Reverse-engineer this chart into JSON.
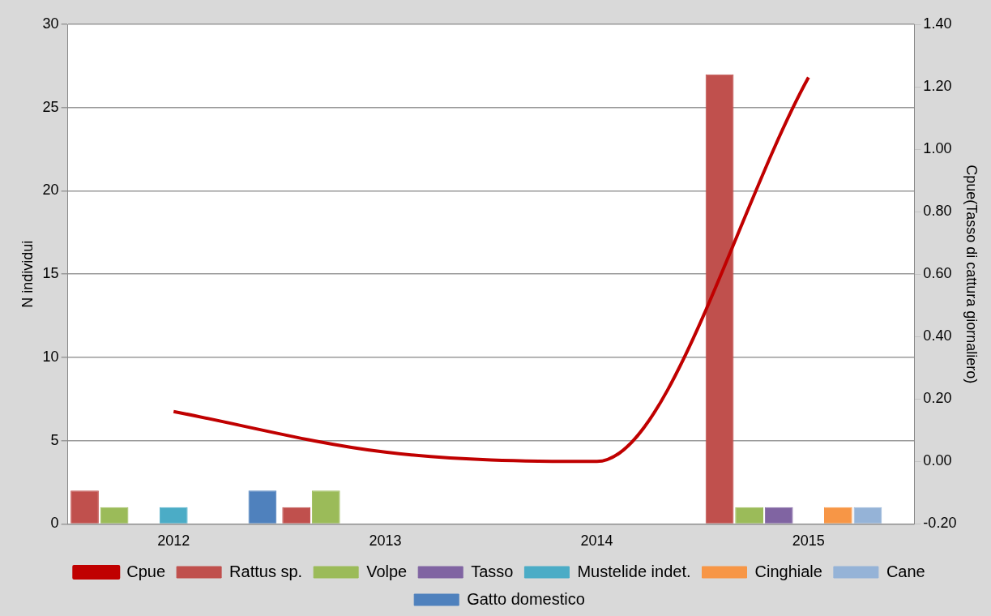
{
  "chart_data": {
    "type": "bar",
    "categories": [
      "2012",
      "2013",
      "2014",
      "2015"
    ],
    "ylabel": "N individui",
    "y2label": "Cpue(Tasso di cattura giornaliero)",
    "ylim": [
      0,
      30
    ],
    "yticks": [
      0,
      5,
      10,
      15,
      20,
      25,
      30
    ],
    "y2lim": [
      -0.2,
      1.4
    ],
    "y2ticks": [
      {
        "value": -0.2,
        "label": "-0.20"
      },
      {
        "value": 0,
        "label": "0.00"
      },
      {
        "value": 0.2,
        "label": "0.20"
      },
      {
        "value": 0.4,
        "label": "0.40"
      },
      {
        "value": 0.6,
        "label": "0.60"
      },
      {
        "value": 0.8,
        "label": "0.80"
      },
      {
        "value": 1.0,
        "label": "1.00"
      },
      {
        "value": 1.2,
        "label": "1.20"
      },
      {
        "value": 1.4,
        "label": "1.40"
      }
    ],
    "grid": "y",
    "legend": "bottom",
    "series": [
      {
        "name": "Rattus sp.",
        "color": "#c0504d",
        "values": [
          2,
          1,
          0,
          27
        ]
      },
      {
        "name": "Volpe",
        "color": "#9bbb59",
        "values": [
          1,
          2,
          0,
          1
        ]
      },
      {
        "name": "Tasso",
        "color": "#8064a2",
        "values": [
          0,
          0,
          0,
          1
        ]
      },
      {
        "name": "Mustelide indet.",
        "color": "#4bacc6",
        "values": [
          1,
          0,
          0,
          0
        ]
      },
      {
        "name": "Cinghiale",
        "color": "#f79646",
        "values": [
          0,
          0,
          0,
          1
        ]
      },
      {
        "name": "Cane",
        "color": "#95b3d7",
        "values": [
          0,
          0,
          0,
          1
        ]
      },
      {
        "name": "Gatto domestico",
        "color": "#4f81bd",
        "values": [
          2,
          0,
          0,
          0
        ]
      },
      {
        "name": "Cpue",
        "type": "line",
        "axis": "y2",
        "color": "#c00000",
        "values": [
          0.16,
          0.03,
          0.0,
          1.23
        ]
      }
    ]
  }
}
